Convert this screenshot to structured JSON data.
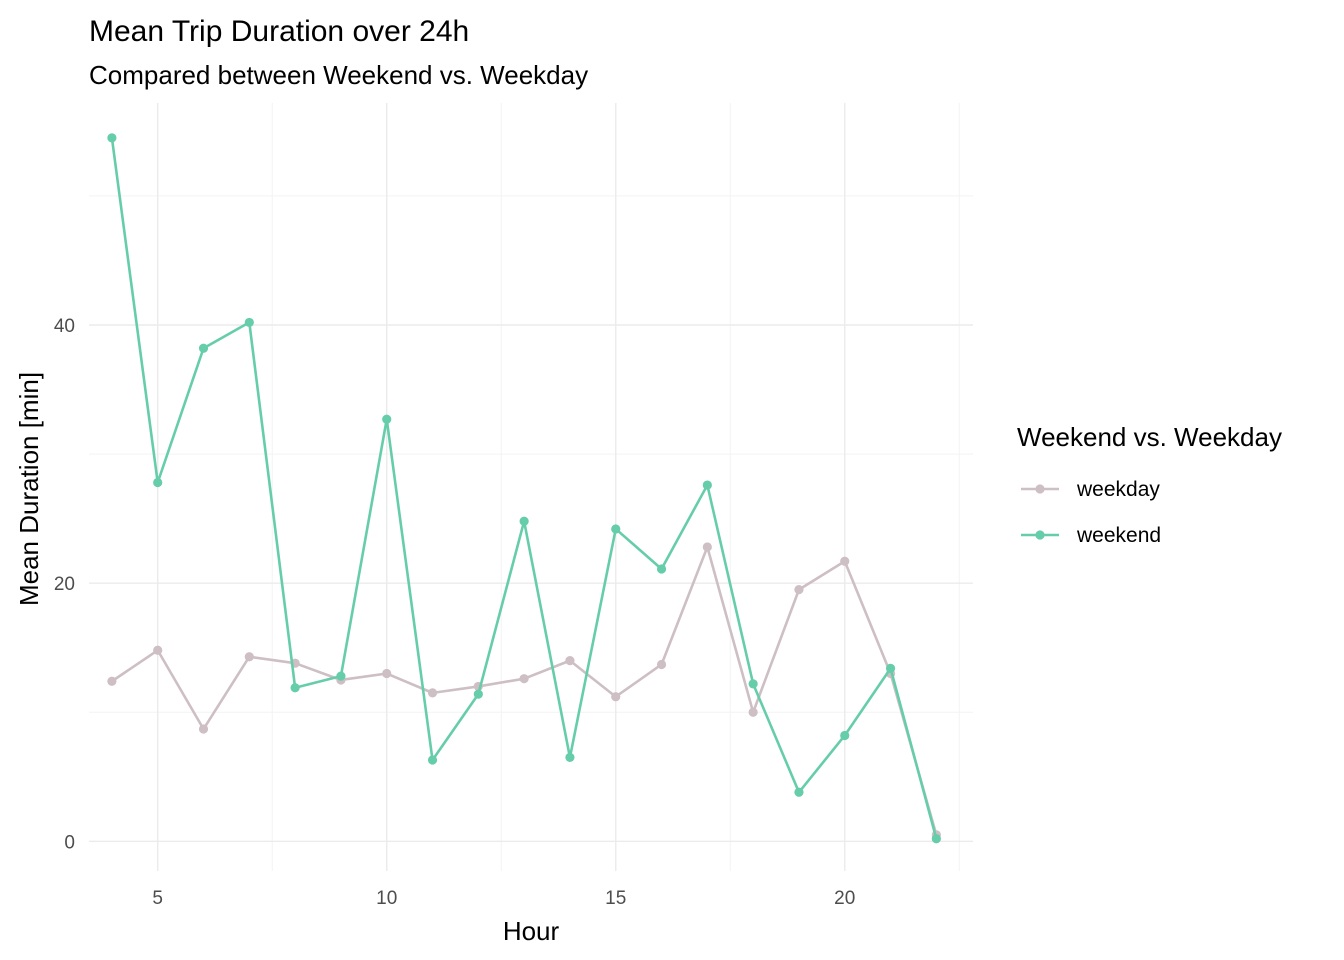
{
  "chart_data": {
    "type": "line",
    "title": "Mean Trip Duration over 24h",
    "subtitle": "Compared between Weekend vs. Weekday",
    "xlabel": "Hour",
    "ylabel": "Mean Duration [min]",
    "xlim": [
      3.5,
      22.8
    ],
    "ylim": [
      -2.3,
      57.2
    ],
    "x_ticks": [
      5,
      10,
      15,
      20
    ],
    "y_ticks": [
      0,
      20,
      40
    ],
    "grid": true,
    "legend": {
      "title": "Weekend vs. Weekday",
      "position": "right"
    },
    "x": [
      4,
      5,
      6,
      7,
      8,
      9,
      10,
      11,
      12,
      13,
      14,
      15,
      16,
      17,
      18,
      19,
      20,
      21,
      22
    ],
    "series": [
      {
        "name": "weekday",
        "color": "#cdbfc3",
        "values": [
          12.4,
          14.8,
          8.7,
          14.3,
          13.8,
          12.5,
          13.0,
          11.5,
          12.0,
          12.6,
          14.0,
          11.2,
          13.7,
          22.8,
          10.0,
          19.5,
          21.7,
          13.0,
          0.5
        ]
      },
      {
        "name": "weekend",
        "color": "#66cdaa",
        "values": [
          54.5,
          27.8,
          38.2,
          40.2,
          11.9,
          12.8,
          32.7,
          6.3,
          11.4,
          24.8,
          6.5,
          24.2,
          21.1,
          27.6,
          12.2,
          3.8,
          8.2,
          13.4,
          0.2
        ]
      }
    ]
  }
}
